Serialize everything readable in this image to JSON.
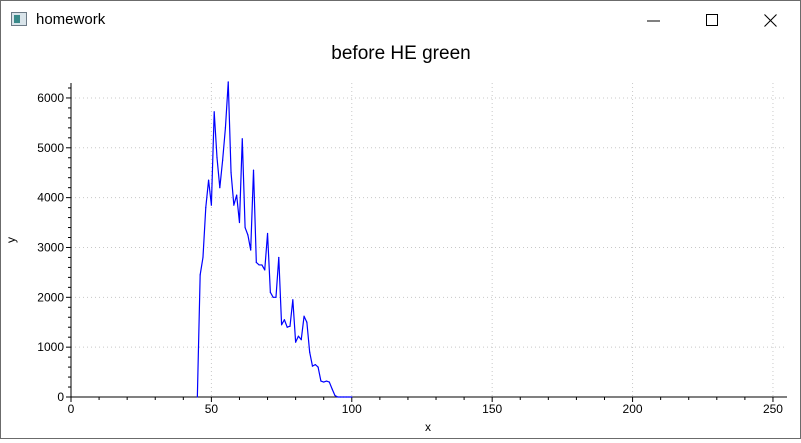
{
  "window": {
    "title": "homework"
  },
  "chart_data": {
    "type": "line",
    "title": "before HE green",
    "xlabel": "x",
    "ylabel": "y",
    "xlim": [
      0,
      255
    ],
    "ylim": [
      0,
      6300
    ],
    "xticks": [
      "0",
      "50",
      "100",
      "150",
      "200",
      "250"
    ],
    "yticks": [
      "0",
      "1000",
      "2000",
      "3000",
      "4000",
      "5000",
      "6000"
    ],
    "grid": true,
    "series": [
      {
        "color": "#0000ff",
        "x": [
          45,
          46,
          47,
          48,
          49,
          50,
          51,
          52,
          53,
          54,
          55,
          56,
          57,
          58,
          59,
          60,
          61,
          62,
          63,
          64,
          65,
          66,
          67,
          68,
          69,
          70,
          71,
          72,
          73,
          74,
          75,
          76,
          77,
          78,
          79,
          80,
          81,
          82,
          83,
          84,
          85,
          86,
          87,
          88,
          89,
          90,
          91,
          92,
          93,
          94,
          95,
          96,
          97,
          98,
          99,
          100
        ],
        "values": [
          0,
          2450,
          2800,
          3800,
          4350,
          3850,
          5720,
          4800,
          4200,
          4750,
          5400,
          6320,
          4500,
          3850,
          4050,
          3500,
          5180,
          3400,
          3250,
          2950,
          4550,
          2700,
          2650,
          2650,
          2550,
          3280,
          2100,
          2000,
          2000,
          2800,
          1450,
          1550,
          1400,
          1420,
          1950,
          1100,
          1220,
          1150,
          1620,
          1500,
          900,
          620,
          650,
          600,
          320,
          300,
          320,
          300,
          160,
          30,
          0,
          0,
          0,
          0,
          0,
          0
        ]
      }
    ]
  }
}
